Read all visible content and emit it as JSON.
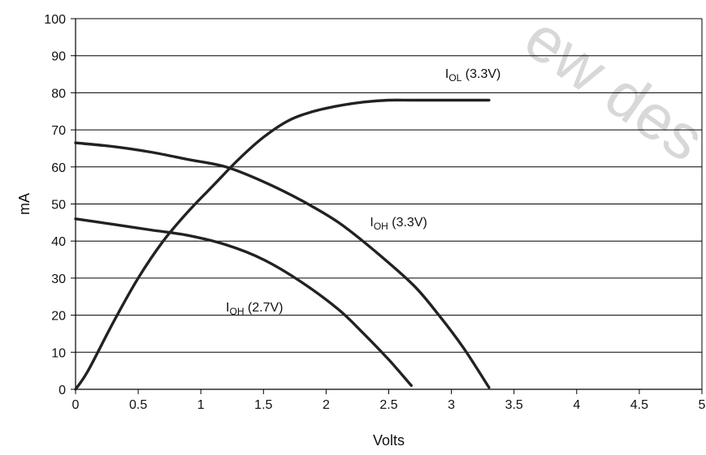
{
  "watermark": "ew des",
  "chart_data": {
    "type": "line",
    "title": "",
    "xlabel": "Volts",
    "ylabel": "mA",
    "xlim": [
      0,
      5
    ],
    "ylim": [
      0,
      100
    ],
    "xticks": [
      0,
      0.5,
      1,
      1.5,
      2,
      2.5,
      3,
      3.5,
      4,
      4.5,
      5
    ],
    "xtick_labels": [
      "0",
      "0.5",
      "1",
      "1.5",
      "2",
      "2.5",
      "3",
      "3.5",
      "4",
      "4.5",
      "5"
    ],
    "yticks": [
      0,
      10,
      20,
      30,
      40,
      50,
      60,
      70,
      80,
      90,
      100
    ],
    "ytick_labels": [
      "0",
      "10",
      "20",
      "30",
      "40",
      "50",
      "60",
      "70",
      "80",
      "90",
      "100"
    ],
    "grid": {
      "horizontal": true,
      "vertical": false
    },
    "series": [
      {
        "name": "IOL (3.3V)",
        "label_main": "I",
        "label_sub": "OL",
        "label_rest": " (3.3V)",
        "label_at": [
          2.95,
          84
        ],
        "color": "#222222",
        "points": [
          [
            0,
            0
          ],
          [
            0.1,
            5
          ],
          [
            0.3,
            18
          ],
          [
            0.5,
            30
          ],
          [
            0.7,
            40
          ],
          [
            0.9,
            48
          ],
          [
            1.1,
            55
          ],
          [
            1.3,
            62
          ],
          [
            1.5,
            68
          ],
          [
            1.7,
            72.5
          ],
          [
            1.9,
            75
          ],
          [
            2.1,
            76.5
          ],
          [
            2.3,
            77.5
          ],
          [
            2.5,
            78
          ],
          [
            2.7,
            78
          ],
          [
            3.0,
            78
          ],
          [
            3.3,
            78
          ]
        ]
      },
      {
        "name": "IOH (3.3V)",
        "label_main": "I",
        "label_sub": "OH",
        "label_rest": " (3.3V)",
        "label_at": [
          2.35,
          44
        ],
        "color": "#222222",
        "points": [
          [
            0,
            66.5
          ],
          [
            0.3,
            65.5
          ],
          [
            0.6,
            64
          ],
          [
            0.9,
            62
          ],
          [
            1.2,
            60
          ],
          [
            1.5,
            56
          ],
          [
            1.8,
            51
          ],
          [
            2.1,
            45
          ],
          [
            2.4,
            37
          ],
          [
            2.7,
            28
          ],
          [
            2.9,
            20
          ],
          [
            3.1,
            11
          ],
          [
            3.3,
            0.5
          ]
        ]
      },
      {
        "name": "IOH (2.7V)",
        "label_main": "I",
        "label_sub": "OH",
        "label_rest": " (2.7V)",
        "label_at": [
          1.2,
          21
        ],
        "color": "#222222",
        "points": [
          [
            0,
            46
          ],
          [
            0.3,
            44.5
          ],
          [
            0.6,
            43
          ],
          [
            0.9,
            41.5
          ],
          [
            1.2,
            39
          ],
          [
            1.5,
            35
          ],
          [
            1.8,
            29
          ],
          [
            2.1,
            21.5
          ],
          [
            2.3,
            15
          ],
          [
            2.5,
            8
          ],
          [
            2.68,
            1
          ]
        ]
      }
    ]
  }
}
